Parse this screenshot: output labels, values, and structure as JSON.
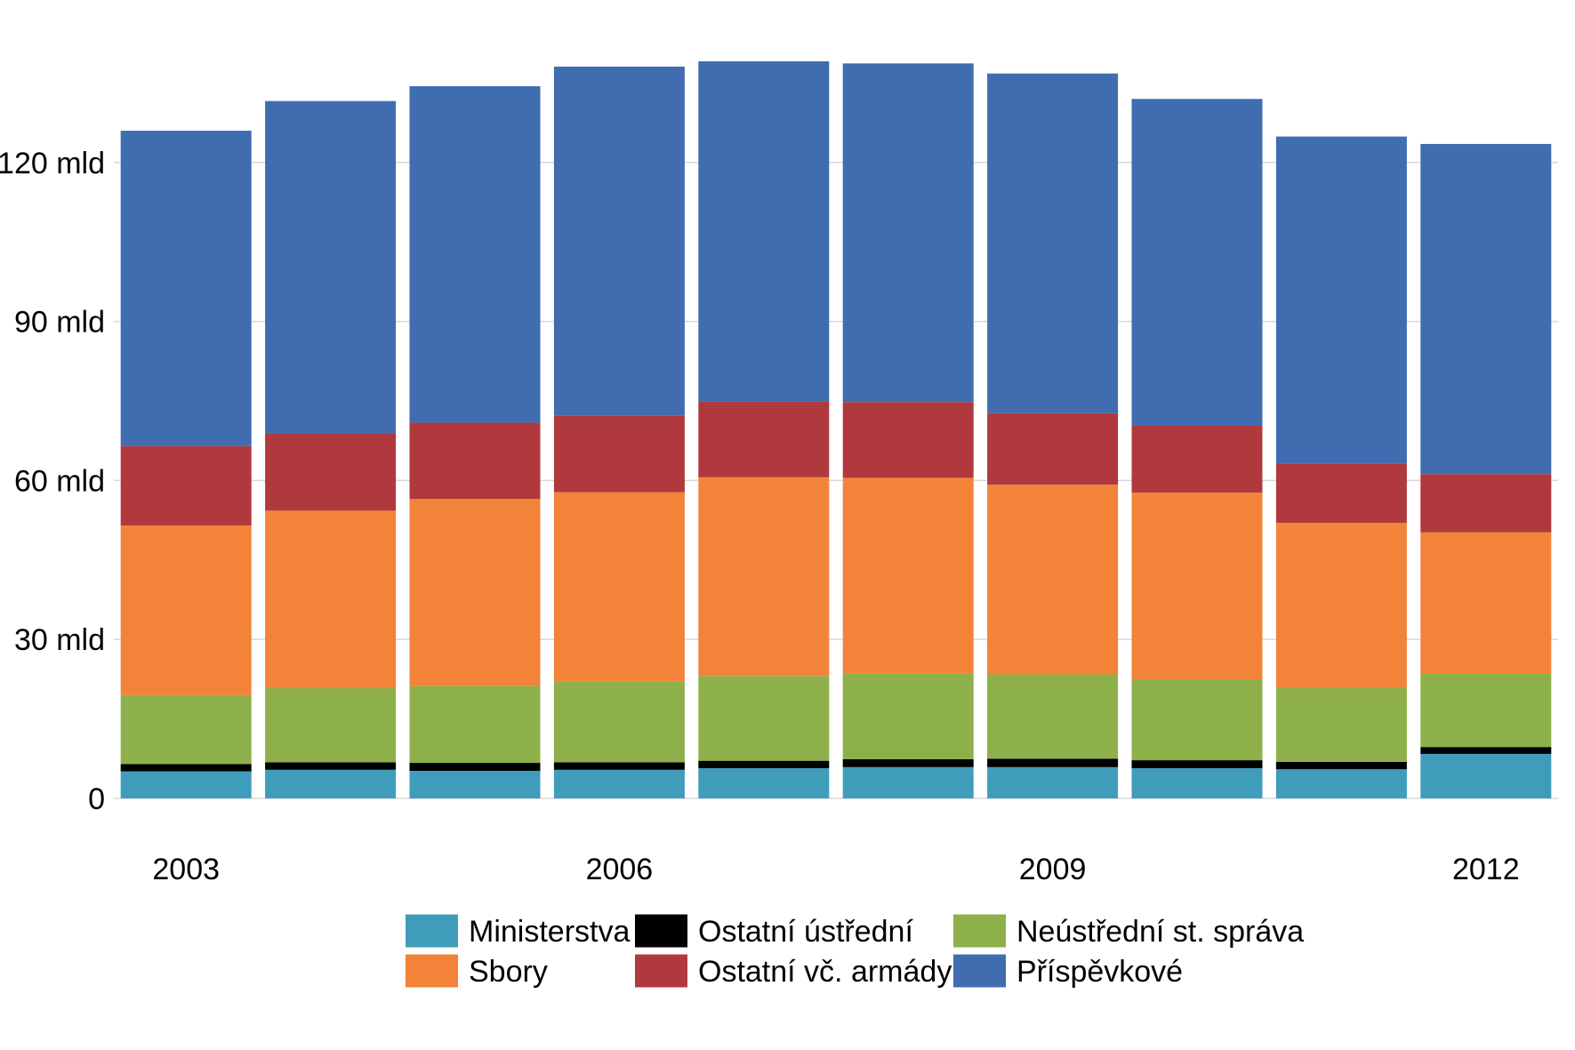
{
  "chart_data": {
    "type": "bar",
    "stacked": true,
    "categories": [
      "2003",
      "2004",
      "2005",
      "2006",
      "2007",
      "2008",
      "2009",
      "2010",
      "2011",
      "2012"
    ],
    "x_tick_labels": [
      {
        "category": "2003",
        "label": "2003"
      },
      {
        "category": "2006",
        "label": "2006"
      },
      {
        "category": "2009",
        "label": "2009"
      },
      {
        "category": "2012",
        "label": "2012"
      }
    ],
    "y_ticks": [
      {
        "value": 0,
        "label": "0"
      },
      {
        "value": 30,
        "label": "30 mld"
      },
      {
        "value": 60,
        "label": "60 mld"
      },
      {
        "value": 90,
        "label": "90 mld"
      },
      {
        "value": 120,
        "label": "120 mld"
      }
    ],
    "ylim": [
      0,
      140
    ],
    "grid": true,
    "legend_position": "bottom",
    "series": [
      {
        "name": "Ministerstva",
        "color": "#3f9dbb",
        "values": [
          5.1,
          5.4,
          5.2,
          5.4,
          5.7,
          5.9,
          5.9,
          5.7,
          5.5,
          8.4
        ]
      },
      {
        "name": "Ostatní ústřední",
        "color": "#000000",
        "values": [
          1.4,
          1.4,
          1.5,
          1.4,
          1.4,
          1.5,
          1.6,
          1.5,
          1.4,
          1.3
        ]
      },
      {
        "name": "Neústřední st. správa",
        "color": "#8db04a",
        "values": [
          13.0,
          14.0,
          14.5,
          15.3,
          16.0,
          16.2,
          15.9,
          15.3,
          14.0,
          13.8
        ]
      },
      {
        "name": "Sbory",
        "color": "#f28339",
        "values": [
          32.0,
          33.5,
          35.3,
          35.7,
          37.5,
          36.9,
          35.8,
          35.2,
          31.1,
          26.7
        ]
      },
      {
        "name": "Ostatní vč. armády",
        "color": "#b0393d",
        "values": [
          15.0,
          14.5,
          14.4,
          14.4,
          14.3,
          14.3,
          13.5,
          12.6,
          11.2,
          11.0
        ]
      },
      {
        "name": "Příspěvkové",
        "color": "#3f6db0",
        "values": [
          59.5,
          62.8,
          63.5,
          65.9,
          64.2,
          63.9,
          64.1,
          61.7,
          61.7,
          62.3
        ]
      }
    ],
    "legend_rows": [
      [
        "Ministerstva",
        "Ostatní ústřední",
        "Neústřední st. správa"
      ],
      [
        "Sbory",
        "Ostatní vč. armády",
        "Příspěvkové"
      ]
    ]
  }
}
